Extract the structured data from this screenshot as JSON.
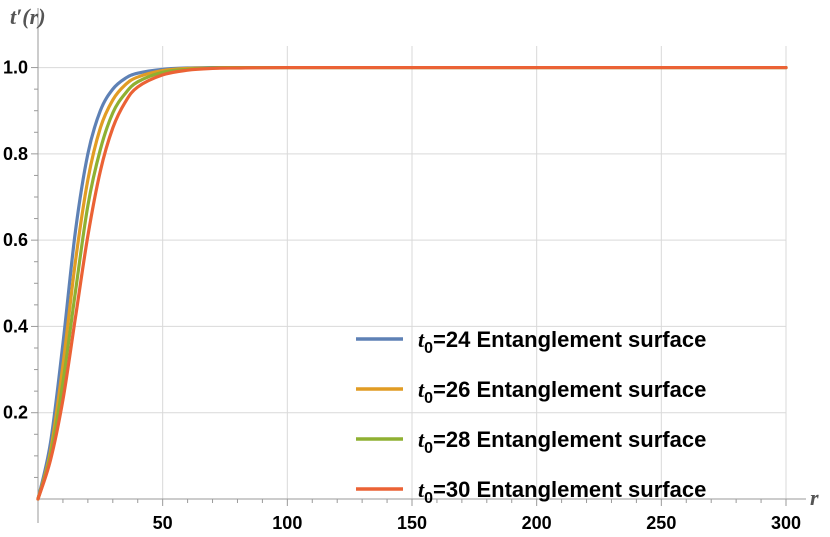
{
  "chart_data": {
    "type": "line",
    "xlabel": "r",
    "ylabel": "t′(r)",
    "xlim": [
      0,
      300
    ],
    "ylim": [
      0,
      1.05
    ],
    "x_ticks": [
      50,
      100,
      150,
      200,
      250,
      300
    ],
    "y_ticks": [
      0.2,
      0.4,
      0.6,
      0.8,
      1.0
    ],
    "x_tick_labels": [
      "50",
      "100",
      "150",
      "200",
      "250",
      "300"
    ],
    "y_tick_labels": [
      "0.2",
      "0.4",
      "0.6",
      "0.8",
      "1.0"
    ],
    "grid": true,
    "legend_position": "bottom-right",
    "series": [
      {
        "name_prefix": "t",
        "name_subscript": "0",
        "name_suffix": "=24 Entanglement surface",
        "color": "#5E81B5",
        "x": [
          0,
          5,
          10,
          15,
          20,
          25,
          30,
          35,
          40,
          50,
          60,
          70,
          80,
          100,
          150,
          200,
          250,
          300
        ],
        "y": [
          0,
          0.13,
          0.36,
          0.62,
          0.8,
          0.9,
          0.95,
          0.975,
          0.987,
          0.996,
          0.999,
          1.0,
          1.0,
          1.0,
          1.0,
          1.0,
          1.0,
          1.0
        ]
      },
      {
        "name_prefix": "t",
        "name_subscript": "0",
        "name_suffix": "=26 Entanglement surface",
        "color": "#E19C24",
        "x": [
          0,
          5,
          10,
          15,
          20,
          25,
          30,
          35,
          40,
          50,
          60,
          70,
          80,
          100,
          150,
          200,
          250,
          300
        ],
        "y": [
          0,
          0.11,
          0.31,
          0.55,
          0.74,
          0.86,
          0.925,
          0.96,
          0.978,
          0.993,
          0.998,
          0.999,
          1.0,
          1.0,
          1.0,
          1.0,
          1.0,
          1.0
        ]
      },
      {
        "name_prefix": "t",
        "name_subscript": "0",
        "name_suffix": "=28 Entanglement surface",
        "color": "#8FB032",
        "x": [
          0,
          5,
          10,
          15,
          20,
          25,
          30,
          35,
          40,
          50,
          60,
          70,
          80,
          100,
          150,
          200,
          250,
          300
        ],
        "y": [
          0,
          0.1,
          0.27,
          0.48,
          0.68,
          0.81,
          0.895,
          0.94,
          0.967,
          0.989,
          0.996,
          0.999,
          1.0,
          1.0,
          1.0,
          1.0,
          1.0,
          1.0
        ]
      },
      {
        "name_prefix": "t",
        "name_subscript": "0",
        "name_suffix": "=30 Entanglement surface",
        "color": "#EB6235",
        "x": [
          0,
          5,
          10,
          15,
          20,
          25,
          30,
          35,
          40,
          50,
          60,
          70,
          80,
          100,
          150,
          200,
          250,
          300
        ],
        "y": [
          0,
          0.09,
          0.23,
          0.42,
          0.61,
          0.76,
          0.86,
          0.92,
          0.955,
          0.983,
          0.994,
          0.998,
          0.999,
          1.0,
          1.0,
          1.0,
          1.0,
          1.0
        ]
      }
    ]
  }
}
